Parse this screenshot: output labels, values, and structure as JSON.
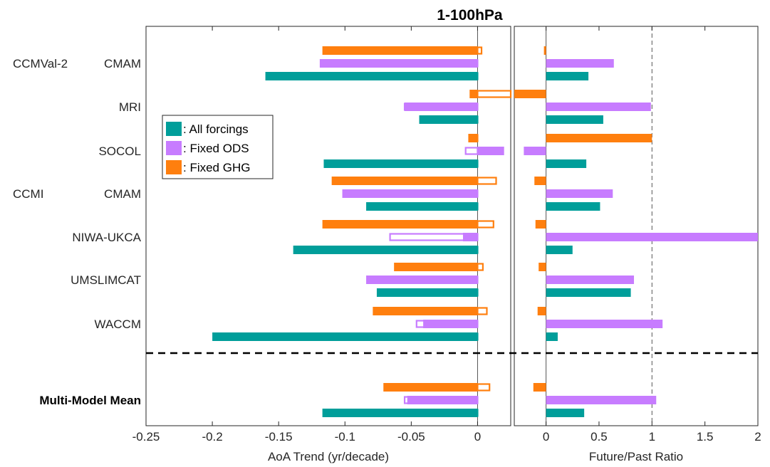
{
  "chart_data": [
    {
      "type": "bar",
      "orientation": "horizontal",
      "title": "1-100hPa",
      "xlabel": "AoA Trend (yr/decade)",
      "xlim": [
        -0.25,
        0.025
      ],
      "xticks": [
        "-0.25",
        "-0.2",
        "-0.15",
        "-0.1",
        "-0.05",
        "0"
      ],
      "xtick_values": [
        -0.25,
        -0.2,
        -0.15,
        -0.1,
        -0.05,
        0
      ],
      "groups": [
        "CCMVal-2",
        "CCMI"
      ],
      "categories": [
        "CMAM",
        "MRI",
        "SOCOL",
        "CMAM",
        "NIWA-UKCA",
        "UMSLIMCAT",
        "WACCM",
        "Multi-Model Mean"
      ],
      "series": [
        {
          "name": ": Fixed GHG",
          "color": "#FF7F0E",
          "filled": [
            -0.117,
            -0.006,
            -0.007,
            -0.11,
            -0.117,
            -0.063,
            -0.079,
            -0.071
          ],
          "hollow": [
            0.003,
            0.025,
            -0.005,
            0.014,
            0.012,
            0.004,
            0.007,
            0.009
          ]
        },
        {
          "name": ": Fixed ODS",
          "color": "#C77CFF",
          "filled": [
            -0.119,
            -0.055,
            0.02,
            -0.102,
            -0.011,
            -0.084,
            -0.041,
            -0.053
          ],
          "hollow": [
            -0.076,
            -0.055,
            -0.009,
            -0.065,
            -0.066,
            -0.072,
            -0.046,
            -0.055
          ]
        },
        {
          "name": ": All forcings",
          "color": "#009E9A",
          "filled": [
            -0.16,
            -0.044,
            -0.116,
            -0.084,
            -0.139,
            -0.076,
            -0.2,
            -0.117
          ],
          "hollow": [
            -0.063,
            -0.024,
            -0.045,
            -0.042,
            -0.035,
            -0.062,
            -0.022,
            -0.042
          ]
        }
      ],
      "grid": false,
      "legend_position": "upper-left"
    },
    {
      "type": "bar",
      "orientation": "horizontal",
      "xlabel": "Future/Past Ratio",
      "xlim": [
        -0.3,
        2
      ],
      "xticks": [
        "0",
        "0.5",
        "1",
        "1.5",
        "2"
      ],
      "xtick_values": [
        0,
        0.5,
        1,
        1.5,
        2
      ],
      "reference_line": 1,
      "categories": [
        "CMAM",
        "MRI",
        "SOCOL",
        "CMAM",
        "NIWA-UKCA",
        "UMSLIMCAT",
        "WACCM",
        "Multi-Model Mean"
      ],
      "series": [
        {
          "name": ": Fixed GHG",
          "color": "#FF7F0E",
          "values": [
            -0.02,
            -0.3,
            1.0,
            -0.11,
            -0.1,
            -0.07,
            -0.08,
            -0.12
          ]
        },
        {
          "name": ": Fixed ODS",
          "color": "#C77CFF",
          "values": [
            0.64,
            0.99,
            -0.21,
            0.63,
            2.0,
            0.83,
            1.1,
            1.04
          ]
        },
        {
          "name": ": All forcings",
          "color": "#009E9A",
          "values": [
            0.4,
            0.54,
            0.38,
            0.51,
            0.25,
            0.8,
            0.11,
            0.36
          ]
        }
      ],
      "grid": false
    }
  ]
}
